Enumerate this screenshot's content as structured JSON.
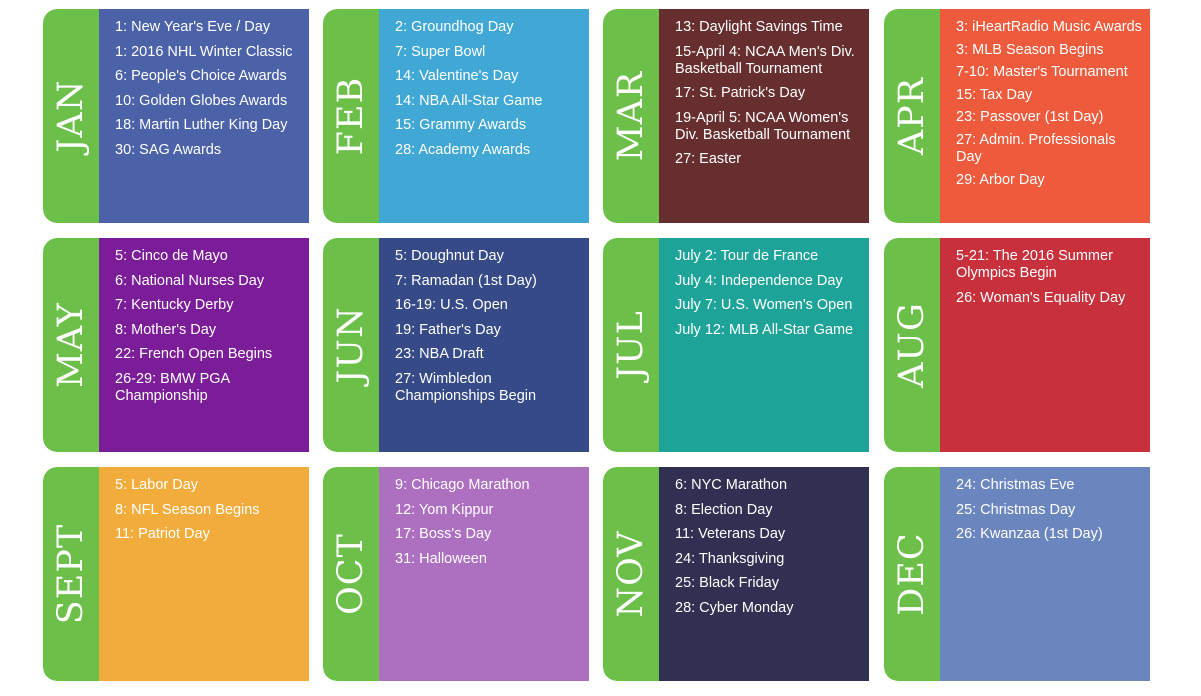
{
  "months": [
    {
      "label": "JAN",
      "color": "#4b61a8",
      "events": [
        "1: New Year's Eve / Day",
        "1: 2016 NHL Winter Classic",
        "6: People's Choice Awards",
        "10: Golden Globes Awards",
        "18: Martin Luther King Day",
        "30: SAG Awards"
      ]
    },
    {
      "label": "FEB",
      "color": "#41a8d6",
      "events": [
        "2: Groundhog Day",
        "7: Super Bowl",
        "14: Valentine's Day",
        "14: NBA All-Star Game",
        "15: Grammy Awards",
        "28: Academy Awards"
      ]
    },
    {
      "label": "MAR",
      "color": "#672e2f",
      "events": [
        "13: Daylight Savings Time",
        "15-April 4: NCAA Men's Div. Basketball Tournament",
        "17: St. Patrick's Day",
        "19-April 5: NCAA Women's Div. Basketball Tournament",
        "27: Easter"
      ]
    },
    {
      "label": "APR",
      "color": "#ee5b3c",
      "events": [
        "3: iHeartRadio Music Awards",
        "3: MLB Season Begins",
        "7-10: Master's Tournament",
        "15: Tax Day",
        "23: Passover (1st Day)",
        "27: Admin. Professionals Day",
        "29: Arbor Day"
      ]
    },
    {
      "label": "MAY",
      "color": "#7b1c99",
      "events": [
        "5: Cinco de Mayo",
        "6: National Nurses Day",
        "7: Kentucky Derby",
        "8: Mother's Day",
        "22: French Open Begins",
        "26-29: BMW PGA Championship"
      ]
    },
    {
      "label": "JUN",
      "color": "#354a86",
      "events": [
        "5: Doughnut Day",
        "7: Ramadan (1st Day)",
        "16-19: U.S. Open",
        "19: Father's Day",
        "23: NBA Draft",
        "27: Wimbledon Championships Begin"
      ]
    },
    {
      "label": "JUL",
      "color": "#1da398",
      "events": [
        "July 2: Tour de France",
        "July 4: Independence Day",
        "July 7: U.S. Women's Open",
        "July 12: MLB All-Star Game"
      ]
    },
    {
      "label": "AUG",
      "color": "#c8303c",
      "events": [
        "5-21: The 2016 Summer Olympics Begin",
        "26: Woman's Equality Day"
      ]
    },
    {
      "label": "SEPT",
      "color": "#f2ac3c",
      "events": [
        "5: Labor Day",
        "8: NFL Season Begins",
        "11: Patriot Day"
      ]
    },
    {
      "label": "OCT",
      "color": "#ad6fc0",
      "events": [
        "9: Chicago Marathon",
        "12: Yom Kippur",
        "17: Boss's Day",
        "31: Halloween"
      ]
    },
    {
      "label": "NOV",
      "color": "#312f52",
      "events": [
        "6: NYC Marathon",
        "8: Election Day",
        "11: Veterans Day",
        "24: Thanksgiving",
        "25: Black Friday",
        "28: Cyber Monday"
      ]
    },
    {
      "label": "DEC",
      "color": "#6b85be",
      "events": [
        "24: Christmas Eve",
        "25: Christmas Day",
        "26: Kwanzaa (1st Day)"
      ]
    }
  ]
}
